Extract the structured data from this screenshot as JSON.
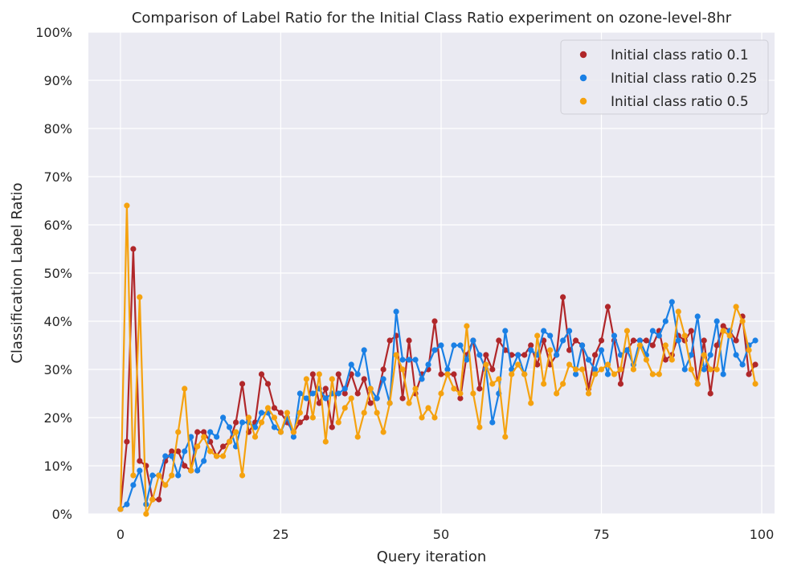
{
  "chart_data": {
    "type": "line",
    "title": "Comparison of Label Ratio for the Initial Class Ratio experiment on ozone-level-8hr",
    "xlabel": "Query iteration",
    "ylabel": "Classification Label Ratio",
    "xlim": [
      -5,
      102
    ],
    "ylim": [
      0,
      1
    ],
    "xticks": [
      0,
      25,
      50,
      75,
      100
    ],
    "yticks": [
      0,
      0.1,
      0.2,
      0.3,
      0.4,
      0.5,
      0.6,
      0.7,
      0.8,
      0.9,
      1.0
    ],
    "xtick_labels": [
      "0",
      "25",
      "50",
      "75",
      "100"
    ],
    "ytick_labels": [
      "0%",
      "10%",
      "20%",
      "30%",
      "40%",
      "50%",
      "60%",
      "70%",
      "80%",
      "90%",
      "100%"
    ],
    "grid": true,
    "legend_position": "top-right",
    "background": "#eaeaf2",
    "series": [
      {
        "name": "Initial class ratio 0.1",
        "color": "#b0272a",
        "values": [
          0.01,
          0.15,
          0.55,
          0.11,
          0.1,
          0.03,
          0.03,
          0.11,
          0.13,
          0.13,
          0.1,
          0.09,
          0.17,
          0.17,
          0.15,
          0.12,
          0.14,
          0.15,
          0.19,
          0.27,
          0.17,
          0.19,
          0.29,
          0.27,
          0.22,
          0.21,
          0.19,
          0.17,
          0.19,
          0.2,
          0.29,
          0.23,
          0.26,
          0.18,
          0.29,
          0.25,
          0.29,
          0.25,
          0.28,
          0.23,
          0.24,
          0.3,
          0.36,
          0.37,
          0.24,
          0.36,
          0.25,
          0.29,
          0.3,
          0.4,
          0.29,
          0.29,
          0.29,
          0.24,
          0.33,
          0.36,
          0.26,
          0.33,
          0.3,
          0.36,
          0.34,
          0.33,
          0.33,
          0.33,
          0.35,
          0.31,
          0.36,
          0.31,
          0.33,
          0.45,
          0.34,
          0.36,
          0.35,
          0.26,
          0.33,
          0.36,
          0.43,
          0.36,
          0.27,
          0.34,
          0.36,
          0.36,
          0.36,
          0.35,
          0.38,
          0.32,
          0.33,
          0.37,
          0.36,
          0.38,
          0.27,
          0.36,
          0.25,
          0.35,
          0.39,
          0.38,
          0.36,
          0.41,
          0.29,
          0.31
        ]
      },
      {
        "name": "Initial class ratio 0.25",
        "color": "#1a80e5",
        "values": [
          0.01,
          0.02,
          0.06,
          0.09,
          0.02,
          0.08,
          0.08,
          0.12,
          0.12,
          0.08,
          0.13,
          0.16,
          0.09,
          0.11,
          0.17,
          0.16,
          0.2,
          0.18,
          0.14,
          0.19,
          0.19,
          0.18,
          0.21,
          0.21,
          0.18,
          0.17,
          0.2,
          0.16,
          0.25,
          0.24,
          0.25,
          0.26,
          0.24,
          0.25,
          0.25,
          0.26,
          0.31,
          0.29,
          0.34,
          0.26,
          0.24,
          0.28,
          0.23,
          0.42,
          0.32,
          0.32,
          0.32,
          0.28,
          0.31,
          0.34,
          0.35,
          0.3,
          0.35,
          0.35,
          0.32,
          0.36,
          0.33,
          0.3,
          0.19,
          0.25,
          0.38,
          0.3,
          0.33,
          0.29,
          0.34,
          0.33,
          0.38,
          0.37,
          0.33,
          0.36,
          0.38,
          0.29,
          0.35,
          0.32,
          0.3,
          0.34,
          0.29,
          0.37,
          0.33,
          0.34,
          0.31,
          0.36,
          0.33,
          0.38,
          0.37,
          0.4,
          0.44,
          0.36,
          0.3,
          0.33,
          0.41,
          0.3,
          0.33,
          0.4,
          0.29,
          0.38,
          0.33,
          0.31,
          0.35,
          0.36
        ]
      },
      {
        "name": "Initial class ratio 0.5",
        "color": "#f5a20f",
        "values": [
          0.01,
          0.64,
          0.08,
          0.45,
          0.0,
          0.03,
          0.08,
          0.06,
          0.08,
          0.17,
          0.26,
          0.09,
          0.14,
          0.16,
          0.13,
          0.12,
          0.12,
          0.15,
          0.17,
          0.08,
          0.2,
          0.16,
          0.19,
          0.22,
          0.2,
          0.17,
          0.21,
          0.17,
          0.21,
          0.28,
          0.2,
          0.29,
          0.15,
          0.28,
          0.19,
          0.22,
          0.24,
          0.16,
          0.21,
          0.26,
          0.21,
          0.17,
          0.23,
          0.33,
          0.3,
          0.23,
          0.26,
          0.2,
          0.22,
          0.2,
          0.25,
          0.29,
          0.26,
          0.25,
          0.39,
          0.25,
          0.18,
          0.31,
          0.27,
          0.28,
          0.16,
          0.29,
          0.31,
          0.29,
          0.23,
          0.37,
          0.27,
          0.34,
          0.25,
          0.27,
          0.31,
          0.3,
          0.3,
          0.25,
          0.29,
          0.3,
          0.31,
          0.29,
          0.3,
          0.38,
          0.3,
          0.35,
          0.32,
          0.29,
          0.29,
          0.35,
          0.32,
          0.42,
          0.37,
          0.3,
          0.27,
          0.33,
          0.3,
          0.3,
          0.38,
          0.37,
          0.43,
          0.4,
          0.34,
          0.27
        ]
      }
    ]
  }
}
